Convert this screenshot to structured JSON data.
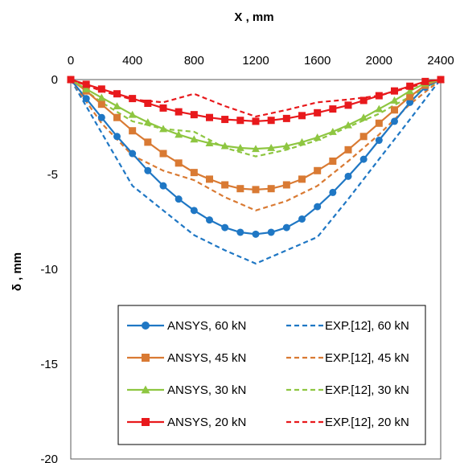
{
  "chart_data": {
    "type": "line",
    "xlabel": "X , mm",
    "ylabel": "δ , mm",
    "x_axis_position": "top",
    "xlim": [
      0,
      2400
    ],
    "ylim": [
      -20,
      0
    ],
    "x_ticks": [
      "0",
      "400",
      "800",
      "1200",
      "1600",
      "2000",
      "2400"
    ],
    "y_ticks": [
      "0",
      "-5",
      "-10",
      "-15",
      "-20"
    ],
    "grid": false,
    "legend_position": "bottom-center",
    "series": [
      {
        "name": "ANSYS, 60 kN",
        "color": "#1f77c4",
        "style": "solid",
        "marker": "circle",
        "x": [
          0,
          100,
          200,
          300,
          400,
          500,
          600,
          700,
          800,
          900,
          1000,
          1100,
          1200,
          1300,
          1400,
          1500,
          1600,
          1700,
          1800,
          1900,
          2000,
          2100,
          2200,
          2300,
          2400
        ],
        "y": [
          0,
          -1.0,
          -2.0,
          -3.0,
          -3.9,
          -4.8,
          -5.6,
          -6.3,
          -6.9,
          -7.4,
          -7.8,
          -8.05,
          -8.15,
          -8.05,
          -7.8,
          -7.35,
          -6.7,
          -5.95,
          -5.1,
          -4.2,
          -3.2,
          -2.2,
          -1.2,
          -0.4,
          0
        ]
      },
      {
        "name": "ANSYS, 45 kN",
        "color": "#d97a33",
        "style": "solid",
        "marker": "square",
        "x": [
          0,
          100,
          200,
          300,
          400,
          500,
          600,
          700,
          800,
          900,
          1000,
          1100,
          1200,
          1300,
          1400,
          1500,
          1600,
          1700,
          1800,
          1900,
          2000,
          2100,
          2200,
          2300,
          2400
        ],
        "y": [
          0,
          -0.6,
          -1.3,
          -2.0,
          -2.7,
          -3.3,
          -3.9,
          -4.4,
          -4.9,
          -5.25,
          -5.55,
          -5.75,
          -5.8,
          -5.75,
          -5.55,
          -5.25,
          -4.8,
          -4.3,
          -3.7,
          -3.0,
          -2.3,
          -1.6,
          -0.9,
          -0.3,
          0
        ]
      },
      {
        "name": "ANSYS, 30 kN",
        "color": "#8ec641",
        "style": "solid",
        "marker": "triangle",
        "x": [
          0,
          100,
          200,
          300,
          400,
          500,
          600,
          700,
          800,
          900,
          1000,
          1100,
          1200,
          1300,
          1400,
          1500,
          1600,
          1700,
          1800,
          1900,
          2000,
          2100,
          2200,
          2300,
          2400
        ],
        "y": [
          0,
          -0.5,
          -0.95,
          -1.4,
          -1.85,
          -2.25,
          -2.6,
          -2.9,
          -3.15,
          -3.35,
          -3.5,
          -3.6,
          -3.65,
          -3.6,
          -3.5,
          -3.3,
          -3.05,
          -2.75,
          -2.4,
          -2.0,
          -1.55,
          -1.1,
          -0.6,
          -0.2,
          0
        ]
      },
      {
        "name": "ANSYS, 20 kN",
        "color": "#e8191c",
        "style": "solid",
        "marker": "square",
        "x": [
          0,
          100,
          200,
          300,
          400,
          500,
          600,
          700,
          800,
          900,
          1000,
          1100,
          1200,
          1300,
          1400,
          1500,
          1600,
          1700,
          1800,
          1900,
          2000,
          2100,
          2200,
          2300,
          2400
        ],
        "y": [
          0,
          -0.25,
          -0.5,
          -0.75,
          -1.0,
          -1.25,
          -1.5,
          -1.7,
          -1.85,
          -2.0,
          -2.1,
          -2.15,
          -2.2,
          -2.15,
          -2.05,
          -1.9,
          -1.75,
          -1.55,
          -1.35,
          -1.1,
          -0.85,
          -0.6,
          -0.35,
          -0.1,
          0
        ]
      },
      {
        "name": "EXP.[12], 60 kN",
        "color": "#1f77c4",
        "style": "dashed",
        "marker": "none",
        "x": [
          0,
          200,
          400,
          600,
          800,
          1000,
          1200,
          1400,
          1600,
          1800,
          2000,
          2200,
          2350,
          2400
        ],
        "y": [
          0,
          -2.8,
          -5.6,
          -6.9,
          -8.2,
          -9.0,
          -9.7,
          -9.0,
          -8.3,
          -6.3,
          -4.2,
          -2.1,
          -0.5,
          0
        ]
      },
      {
        "name": "EXP.[12], 45 kN",
        "color": "#d97a33",
        "style": "dashed",
        "marker": "none",
        "x": [
          0,
          200,
          400,
          600,
          800,
          1000,
          1200,
          1400,
          1600,
          1800,
          2000,
          2200,
          2400
        ],
        "y": [
          0,
          -2.3,
          -4.0,
          -4.8,
          -5.3,
          -6.2,
          -6.9,
          -6.4,
          -5.6,
          -4.3,
          -2.9,
          -1.3,
          0
        ]
      },
      {
        "name": "EXP.[12], 30 kN",
        "color": "#8ec641",
        "style": "dashed",
        "marker": "none",
        "x": [
          0,
          200,
          400,
          600,
          800,
          1000,
          1200,
          1400,
          1600,
          1800,
          2000,
          2200,
          2400
        ],
        "y": [
          0,
          -1.2,
          -2.2,
          -2.6,
          -2.75,
          -3.6,
          -4.05,
          -3.7,
          -3.2,
          -2.5,
          -1.8,
          -0.9,
          0
        ]
      },
      {
        "name": "EXP.[12], 20 kN",
        "color": "#e8191c",
        "style": "dashed",
        "marker": "none",
        "x": [
          0,
          200,
          400,
          600,
          800,
          1000,
          1200,
          1400,
          1600,
          1800,
          2000,
          2200,
          2400
        ],
        "y": [
          0,
          -0.6,
          -1.05,
          -1.2,
          -0.75,
          -1.4,
          -1.95,
          -1.6,
          -1.2,
          -1.05,
          -0.85,
          -0.4,
          0
        ]
      }
    ]
  }
}
